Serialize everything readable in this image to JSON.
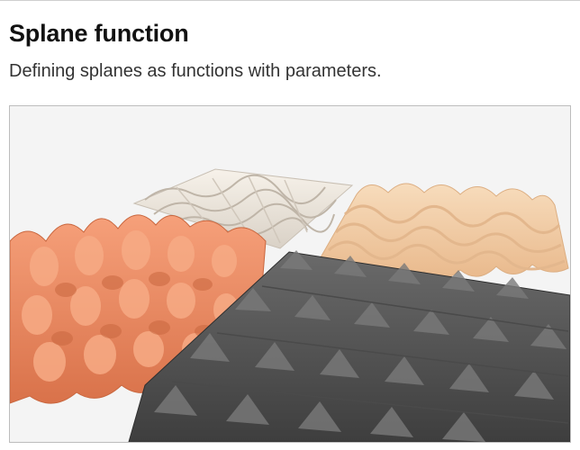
{
  "card": {
    "title": "Splane function",
    "subtitle": "Defining splanes as functions with parameters."
  },
  "preview": {
    "background": "#f4f4f4",
    "surfaces": [
      {
        "name": "cream-eggcrate-surface",
        "color": "#ece6de"
      },
      {
        "name": "peach-ripple-surface",
        "color": "#f3cfa8"
      },
      {
        "name": "orange-bumps-surface",
        "color": "#f08f66"
      },
      {
        "name": "dark-grey-spikes-surface",
        "color": "#5b5b5b"
      }
    ]
  }
}
